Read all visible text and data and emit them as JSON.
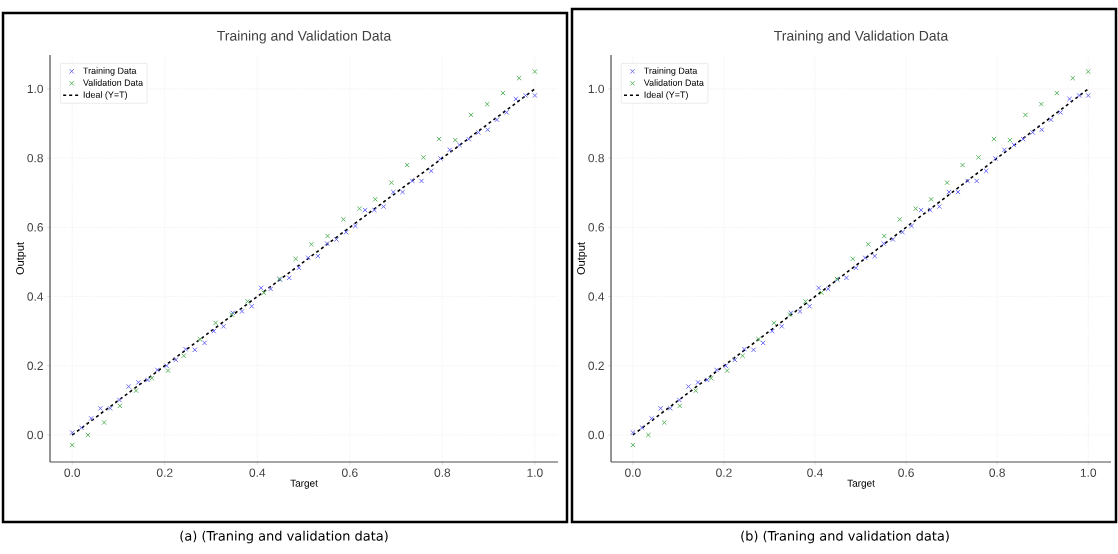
{
  "chart_data": [
    {
      "type": "scatter",
      "title": "Training and Validation Data",
      "xlabel": "Target",
      "ylabel": "Output",
      "marker": "cross",
      "grid": true,
      "legend": "top left",
      "xlim": [
        -0.048,
        1.05
      ],
      "ylim": [
        -0.078,
        1.098
      ],
      "xticks": [
        {
          "value": 0,
          "label": "0.0"
        },
        {
          "value": 0.2,
          "label": "0.2"
        },
        {
          "value": 0.4,
          "label": "0.4"
        },
        {
          "value": 0.6,
          "label": "0.6"
        },
        {
          "value": 0.8,
          "label": "0.8"
        },
        {
          "value": 1,
          "label": "1.0"
        }
      ],
      "yticks": [
        {
          "value": 0,
          "label": "0.0"
        },
        {
          "value": 0.2,
          "label": "0.2"
        },
        {
          "value": 0.4,
          "label": "0.4"
        },
        {
          "value": 0.6,
          "label": "0.6"
        },
        {
          "value": 0.8,
          "label": "0.8"
        },
        {
          "value": 1,
          "label": "1.0"
        }
      ],
      "series": [
        {
          "name": "Training Data",
          "color": "#5c5cf5",
          "x": [
            0,
            0.02,
            0.041,
            0.061,
            0.082,
            0.102,
            0.122,
            0.143,
            0.163,
            0.184,
            0.204,
            0.224,
            0.245,
            0.265,
            0.286,
            0.306,
            0.327,
            0.347,
            0.367,
            0.388,
            0.408,
            0.429,
            0.449,
            0.469,
            0.49,
            0.51,
            0.531,
            0.551,
            0.571,
            0.592,
            0.612,
            0.633,
            0.653,
            0.673,
            0.694,
            0.714,
            0.735,
            0.755,
            0.776,
            0.796,
            0.816,
            0.837,
            0.857,
            0.878,
            0.898,
            0.918,
            0.939,
            0.959,
            0.98,
            1
          ],
          "values": [
            0.007,
            0.021,
            0.048,
            0.077,
            0.077,
            0.101,
            0.14,
            0.152,
            0.159,
            0.188,
            0.2,
            0.217,
            0.248,
            0.246,
            0.266,
            0.3,
            0.314,
            0.353,
            0.357,
            0.372,
            0.425,
            0.422,
            0.449,
            0.454,
            0.483,
            0.512,
            0.517,
            0.553,
            0.565,
            0.586,
            0.604,
            0.65,
            0.65,
            0.66,
            0.702,
            0.702,
            0.734,
            0.734,
            0.763,
            0.799,
            0.824,
            0.838,
            0.855,
            0.874,
            0.882,
            0.911,
            0.932,
            0.971,
            0.981,
            0.981
          ]
        },
        {
          "name": "Validation Data",
          "color": "#4caf50",
          "x": [
            0,
            0.034,
            0.069,
            0.103,
            0.138,
            0.172,
            0.207,
            0.241,
            0.276,
            0.31,
            0.345,
            0.379,
            0.414,
            0.448,
            0.483,
            0.517,
            0.552,
            0.586,
            0.621,
            0.655,
            0.69,
            0.724,
            0.759,
            0.793,
            0.828,
            0.862,
            0.897,
            0.931,
            0.966,
            1
          ],
          "values": [
            -0.029,
            0.0,
            0.036,
            0.084,
            0.128,
            0.164,
            0.186,
            0.229,
            0.277,
            0.324,
            0.348,
            0.386,
            0.411,
            0.451,
            0.509,
            0.551,
            0.575,
            0.623,
            0.654,
            0.681,
            0.729,
            0.78,
            0.802,
            0.855,
            0.852,
            0.925,
            0.956,
            0.988,
            1.031,
            1.05
          ]
        },
        {
          "name": "Ideal (Y=T)",
          "type": "line",
          "color": "#000000",
          "line_style": "dashed",
          "marker": "none",
          "x": [
            0,
            1
          ],
          "values": [
            0,
            1
          ]
        }
      ],
      "annotations": [
        "(a) (Traning and validation data)"
      ]
    },
    {
      "type": "scatter",
      "title": "Training and Validation Data",
      "xlabel": "Target",
      "ylabel": "Output",
      "marker": "cross",
      "grid": true,
      "legend": "top left",
      "xlim": [
        -0.048,
        1.05
      ],
      "ylim": [
        -0.078,
        1.098
      ],
      "xticks": [
        {
          "value": 0,
          "label": "0.0"
        },
        {
          "value": 0.2,
          "label": "0.2"
        },
        {
          "value": 0.4,
          "label": "0.4"
        },
        {
          "value": 0.6,
          "label": "0.6"
        },
        {
          "value": 0.8,
          "label": "0.8"
        },
        {
          "value": 1,
          "label": "1.0"
        }
      ],
      "yticks": [
        {
          "value": 0,
          "label": "0.0"
        },
        {
          "value": 0.2,
          "label": "0.2"
        },
        {
          "value": 0.4,
          "label": "0.4"
        },
        {
          "value": 0.6,
          "label": "0.6"
        },
        {
          "value": 0.8,
          "label": "0.8"
        },
        {
          "value": 1,
          "label": "1.0"
        }
      ],
      "series": [
        {
          "name": "Training Data",
          "color": "#5c5cf5",
          "x": [
            0,
            0.02,
            0.041,
            0.061,
            0.082,
            0.102,
            0.122,
            0.143,
            0.163,
            0.184,
            0.204,
            0.224,
            0.245,
            0.265,
            0.286,
            0.306,
            0.327,
            0.347,
            0.367,
            0.388,
            0.408,
            0.429,
            0.449,
            0.469,
            0.49,
            0.51,
            0.531,
            0.551,
            0.571,
            0.592,
            0.612,
            0.633,
            0.653,
            0.673,
            0.694,
            0.714,
            0.735,
            0.755,
            0.776,
            0.796,
            0.816,
            0.837,
            0.857,
            0.878,
            0.898,
            0.918,
            0.939,
            0.959,
            0.98,
            1
          ],
          "values": [
            0.007,
            0.021,
            0.048,
            0.077,
            0.077,
            0.101,
            0.14,
            0.152,
            0.159,
            0.188,
            0.2,
            0.217,
            0.248,
            0.246,
            0.266,
            0.3,
            0.314,
            0.353,
            0.357,
            0.372,
            0.425,
            0.422,
            0.449,
            0.454,
            0.483,
            0.512,
            0.517,
            0.553,
            0.565,
            0.586,
            0.604,
            0.65,
            0.65,
            0.66,
            0.702,
            0.702,
            0.734,
            0.734,
            0.763,
            0.799,
            0.824,
            0.838,
            0.855,
            0.874,
            0.882,
            0.911,
            0.932,
            0.971,
            0.981,
            0.981
          ]
        },
        {
          "name": "Validation Data",
          "color": "#4caf50",
          "x": [
            0,
            0.034,
            0.069,
            0.103,
            0.138,
            0.172,
            0.207,
            0.241,
            0.276,
            0.31,
            0.345,
            0.379,
            0.414,
            0.448,
            0.483,
            0.517,
            0.552,
            0.586,
            0.621,
            0.655,
            0.69,
            0.724,
            0.759,
            0.793,
            0.828,
            0.862,
            0.897,
            0.931,
            0.966,
            1
          ],
          "values": [
            -0.029,
            0.0,
            0.036,
            0.084,
            0.128,
            0.164,
            0.186,
            0.229,
            0.277,
            0.324,
            0.348,
            0.386,
            0.411,
            0.451,
            0.509,
            0.551,
            0.575,
            0.623,
            0.654,
            0.681,
            0.729,
            0.78,
            0.802,
            0.855,
            0.852,
            0.925,
            0.956,
            0.988,
            1.031,
            1.05
          ]
        },
        {
          "name": "Ideal (Y=T)",
          "type": "line",
          "color": "#000000",
          "line_style": "dashed",
          "marker": "none",
          "x": [
            0,
            1
          ],
          "values": [
            0,
            1
          ]
        }
      ],
      "annotations": [
        "(b) (Traning and validation data)"
      ]
    }
  ]
}
